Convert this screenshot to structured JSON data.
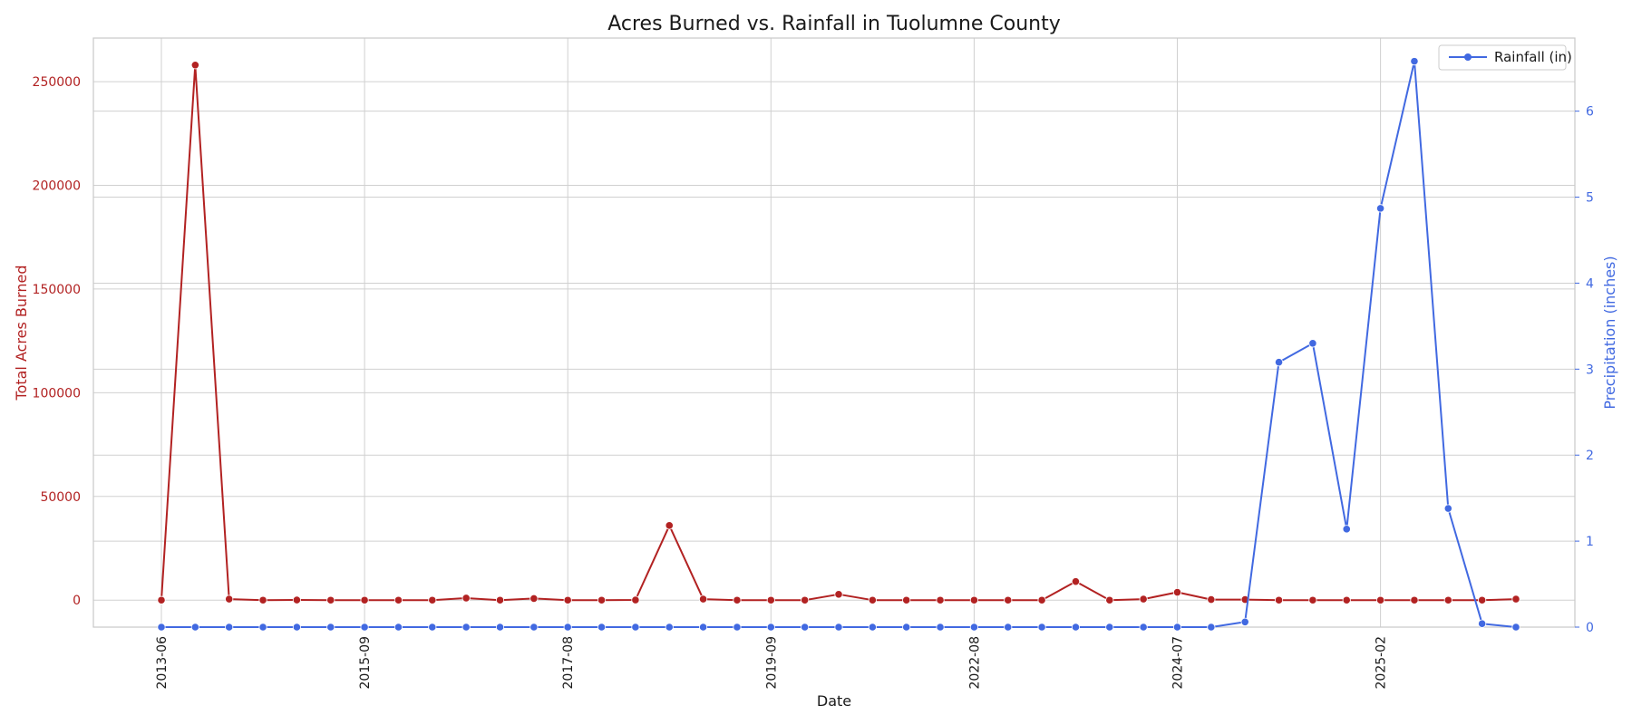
{
  "chart_data": {
    "type": "line",
    "title": "Acres Burned vs. Rainfall in Tuolumne County",
    "xlabel": "Date",
    "ylabel_left": "Total Acres Burned",
    "ylabel_right": "Precipitation (inches)",
    "x_tick_labels": [
      "2013-06",
      "2015-09",
      "2017-08",
      "2019-09",
      "2022-08",
      "2024-07",
      "2025-02"
    ],
    "x_tick_indices": [
      0,
      6,
      12,
      18,
      24,
      30,
      36
    ],
    "ylim_left": [
      -13000,
      271000
    ],
    "yticks_left": [
      0,
      50000,
      100000,
      150000,
      200000,
      250000
    ],
    "ylim_right": [
      0,
      6.85
    ],
    "yticks_right": [
      0,
      1,
      2,
      3,
      4,
      5,
      6
    ],
    "grid": true,
    "legend_position": "top-right",
    "colors": {
      "acres": "#b22222",
      "rain": "#4169e1",
      "grid": "#d0d0d0",
      "frame": "#c8c8c8"
    },
    "series": [
      {
        "name": "",
        "axis": "left",
        "color": "#b22222",
        "values": [
          0,
          258000,
          500,
          0,
          100,
          0,
          0,
          0,
          0,
          1000,
          0,
          800,
          0,
          0,
          100,
          36000,
          500,
          0,
          0,
          0,
          2800,
          0,
          0,
          0,
          0,
          0,
          0,
          9000,
          0,
          500,
          3800,
          300,
          300,
          0,
          0,
          0,
          0,
          0,
          0,
          0,
          500
        ]
      },
      {
        "name": "Rainfall (in)",
        "axis": "right",
        "color": "#4169e1",
        "values": [
          0,
          0,
          0,
          0,
          0,
          0,
          0,
          0,
          0,
          0,
          0,
          0,
          0,
          0,
          0,
          0,
          0,
          0,
          0,
          0,
          0,
          0,
          0,
          0,
          0,
          0,
          0,
          0,
          0,
          0,
          0,
          0,
          0.06,
          3.08,
          3.3,
          1.14,
          4.87,
          6.58,
          1.38,
          0.04,
          0
        ]
      }
    ]
  }
}
